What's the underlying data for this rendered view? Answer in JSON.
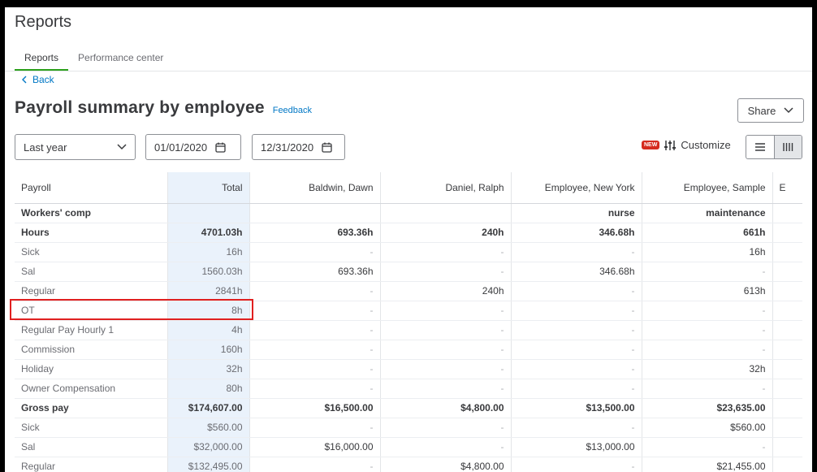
{
  "page": {
    "title": "Reports"
  },
  "tabs": [
    {
      "label": "Reports",
      "active": true
    },
    {
      "label": "Performance center",
      "active": false
    }
  ],
  "back": {
    "label": "Back"
  },
  "report": {
    "title": "Payroll summary by employee",
    "feedback_label": "Feedback"
  },
  "share": {
    "label": "Share"
  },
  "filters": {
    "period": "Last year",
    "date_from": "01/01/2020",
    "date_to": "12/31/2020"
  },
  "customize": {
    "badge": "NEW",
    "label": "Customize"
  },
  "icons": {
    "back": "chevron-left-icon",
    "share_caret": "chevron-down-icon",
    "period_caret": "chevron-down-icon",
    "calendar": "calendar-icon",
    "customize": "sliders-icon",
    "list_view": "list-view-icon",
    "column_view": "column-view-icon"
  },
  "colors": {
    "accent": "#2ca01c",
    "link": "#0077c5",
    "total_column": "#eaf2fb",
    "badge": "#d52b1e",
    "highlight": "#e02020"
  },
  "table": {
    "columns": [
      "Payroll",
      "Total",
      "Baldwin, Dawn",
      "Daniel, Ralph",
      "Employee, New York",
      "Employee, Sample",
      "E"
    ],
    "rows": [
      {
        "bold": true,
        "cells": [
          "Workers' comp",
          "",
          "",
          "",
          "nurse",
          "maintenance",
          ""
        ]
      },
      {
        "bold": true,
        "cells": [
          "Hours",
          "4701.03h",
          "693.36h",
          "240h",
          "346.68h",
          "661h",
          ""
        ]
      },
      {
        "bold": false,
        "cells": [
          "Sick",
          "16h",
          "-",
          "-",
          "-",
          "16h",
          ""
        ]
      },
      {
        "bold": false,
        "cells": [
          "Sal",
          "1560.03h",
          "693.36h",
          "-",
          "346.68h",
          "-",
          ""
        ]
      },
      {
        "bold": false,
        "cells": [
          "Regular",
          "2841h",
          "-",
          "240h",
          "-",
          "613h",
          ""
        ]
      },
      {
        "bold": false,
        "cells": [
          "OT",
          "8h",
          "-",
          "-",
          "-",
          "-",
          ""
        ]
      },
      {
        "bold": false,
        "cells": [
          "Regular Pay Hourly 1",
          "4h",
          "-",
          "-",
          "-",
          "-",
          ""
        ]
      },
      {
        "bold": false,
        "cells": [
          "Commission",
          "160h",
          "-",
          "-",
          "-",
          "-",
          ""
        ]
      },
      {
        "bold": false,
        "cells": [
          "Holiday",
          "32h",
          "-",
          "-",
          "-",
          "32h",
          ""
        ]
      },
      {
        "bold": false,
        "cells": [
          "Owner Compensation",
          "80h",
          "-",
          "-",
          "-",
          "-",
          ""
        ]
      },
      {
        "bold": true,
        "cells": [
          "Gross pay",
          "$174,607.00",
          "$16,500.00",
          "$4,800.00",
          "$13,500.00",
          "$23,635.00",
          ""
        ]
      },
      {
        "bold": false,
        "cells": [
          "Sick",
          "$560.00",
          "-",
          "-",
          "-",
          "$560.00",
          ""
        ]
      },
      {
        "bold": false,
        "cells": [
          "Sal",
          "$32,000.00",
          "$16,000.00",
          "-",
          "$13,000.00",
          "-",
          ""
        ]
      },
      {
        "bold": false,
        "cells": [
          "Regular",
          "$132,495.00",
          "-",
          "$4,800.00",
          "-",
          "$21,455.00",
          ""
        ]
      }
    ]
  }
}
